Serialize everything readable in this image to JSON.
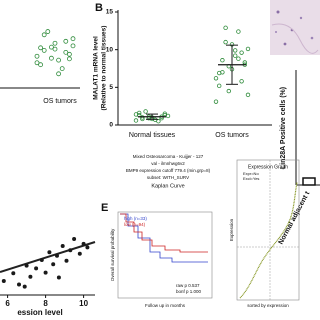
{
  "panel_a": {
    "category": "OS tumors",
    "values": [
      6.5,
      7.2,
      8.1,
      8.8,
      9.5,
      7.8,
      8.4,
      6.9,
      10.2,
      11.3,
      5.6,
      7.5,
      8.9,
      9.8,
      6.2,
      8.6,
      7.1,
      10.8,
      4.8,
      9.1
    ]
  },
  "panel_b": {
    "label": "B",
    "y_label": [
      "MALAT1 mRNA level",
      "(Relative to normal tissues)"
    ],
    "categories": [
      "Normal tissues",
      "OS tumors"
    ],
    "ylim": [
      0,
      15
    ],
    "yticks": [
      0,
      5,
      10,
      15
    ],
    "groups": [
      [
        0.6,
        0.9,
        1.1,
        1.3,
        0.8,
        1.5,
        1.0,
        0.7,
        1.2,
        1.8,
        0.5,
        1.4,
        1.1,
        0.9,
        1.6,
        1.0,
        1.3,
        0.8
      ],
      [
        3.1,
        4.5,
        5.8,
        6.9,
        7.4,
        8.0,
        8.6,
        9.2,
        10.1,
        11.0,
        12.4,
        6.2,
        7.8,
        9.6,
        5.2,
        10.7,
        8.3,
        7.0,
        9.9,
        4.0,
        12.9,
        8.8
      ]
    ],
    "means": [
      1.1,
      8.0
    ],
    "sd": [
      0.35,
      2.6
    ]
  },
  "panel_c": {
    "label": "C",
    "y_label": "Lin28A Positive cells (%)",
    "category": "Normal adjacent t"
  },
  "panel_d": {
    "x_label": "ession level",
    "xlim": [
      5.6,
      10.6
    ],
    "xticks": [
      6,
      8,
      10
    ],
    "ylim": [
      0,
      10
    ],
    "x": [
      5.8,
      6.3,
      6.6,
      7.0,
      7.2,
      7.5,
      7.8,
      8.0,
      8.2,
      8.4,
      8.6,
      8.9,
      9.1,
      9.3,
      9.5,
      9.8,
      10.0,
      10.2,
      6.9,
      8.7
    ],
    "y": [
      2.0,
      3.1,
      1.5,
      4.2,
      2.6,
      3.8,
      5.0,
      3.2,
      6.1,
      4.4,
      5.6,
      7.0,
      4.9,
      6.4,
      8.0,
      5.9,
      7.3,
      6.8,
      1.2,
      2.5
    ]
  },
  "panel_e": {
    "label": "E",
    "title_lines": [
      "Mixed Osteosarcoma - Kuijjer - 127",
      "val - ilmnhwg6v2",
      "BMP9 expression cutoff 779.4 (min.grp=8)",
      "subset: WITH_SURV",
      "Kaplan Curve"
    ],
    "legend": [
      "high (n=33)",
      "low (n=94)"
    ],
    "stats": [
      "raw p 0.537",
      "bonf p 1.000"
    ],
    "x_label": "Follow up in months",
    "y_label": "Overall survival probability",
    "expression_graph": {
      "title": "Expression Graph",
      "legend": [
        "Expr=No",
        "Excl=Yes"
      ],
      "y_label": "Expression",
      "x_label": "sorted by expression"
    }
  }
}
